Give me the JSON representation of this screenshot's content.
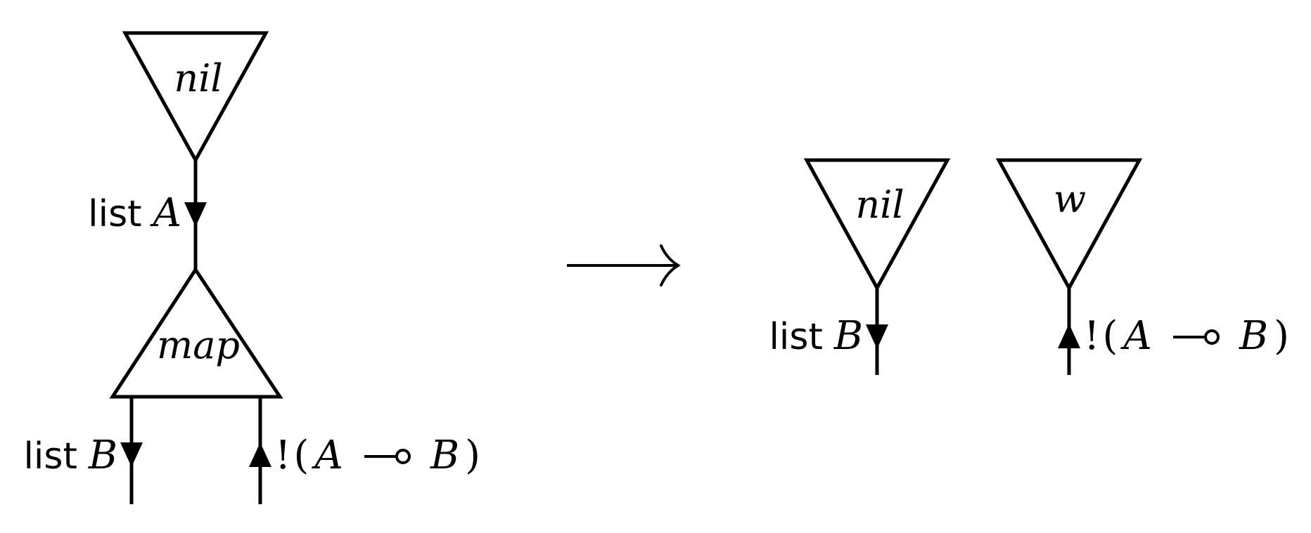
{
  "left_net": {
    "agents": [
      {
        "id": "nil",
        "label": "nil"
      },
      {
        "id": "map",
        "label": "map"
      }
    ],
    "wires": [
      {
        "id": "wire-list-a",
        "word": "list",
        "type": "A"
      },
      {
        "id": "wire-list-b",
        "word": "list",
        "type": "B"
      },
      {
        "id": "wire-function",
        "bang": "!",
        "open": "(",
        "from": "A",
        "to": "B",
        "close": ")"
      }
    ]
  },
  "rewrite_arrow": "⟶",
  "right_net": {
    "agents": [
      {
        "id": "nil",
        "label": "nil"
      },
      {
        "id": "w",
        "label": "w"
      }
    ],
    "wires": [
      {
        "id": "wire-list-b",
        "word": "list",
        "type": "B"
      },
      {
        "id": "wire-function",
        "bang": "!",
        "open": "(",
        "from": "A",
        "to": "B",
        "close": ")"
      }
    ]
  }
}
